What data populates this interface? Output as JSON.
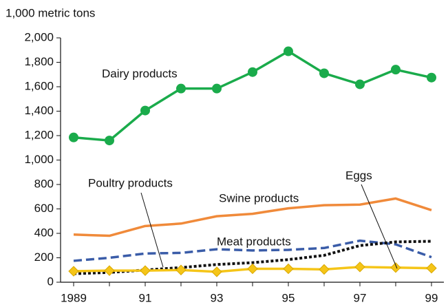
{
  "chart_data": {
    "type": "line",
    "y_label": "1,000 metric tons",
    "categories": [
      "1989",
      null,
      "91",
      null,
      "93",
      null,
      "95",
      null,
      "97",
      null,
      "99"
    ],
    "ylim": [
      0,
      2000
    ],
    "yticks": [
      0,
      200,
      400,
      600,
      800,
      {
        "value": 1000,
        "label": "1,000"
      },
      {
        "value": 1200,
        "label": "1,200"
      },
      {
        "value": 1400,
        "label": "1,400"
      },
      {
        "value": 1600,
        "label": "1,600"
      },
      {
        "value": 1800,
        "label": "1,800"
      },
      {
        "value": 2000,
        "label": "2,000"
      }
    ],
    "series": [
      {
        "name": "Dairy products",
        "color": "#1aab4b",
        "linestyle": "solid",
        "marker": "circle",
        "values": [
          1185,
          1160,
          1405,
          1585,
          1585,
          1720,
          1890,
          1710,
          1620,
          1740,
          1675
        ]
      },
      {
        "name": "Swine products",
        "color": "#f08a3a",
        "linestyle": "solid",
        "marker": "none",
        "values": [
          390,
          380,
          460,
          480,
          540,
          560,
          605,
          630,
          635,
          685,
          590
        ]
      },
      {
        "name": "Meat products",
        "color": "#3a5ca8",
        "linestyle": "dashed",
        "marker": "none",
        "values": [
          175,
          200,
          235,
          240,
          270,
          260,
          265,
          280,
          340,
          310,
          205
        ]
      },
      {
        "name": "Poultry products",
        "color": "#111111",
        "linestyle": "dotted",
        "marker": "none",
        "values": [
          70,
          80,
          100,
          120,
          145,
          160,
          185,
          220,
          300,
          330,
          335
        ]
      },
      {
        "name": "Eggs",
        "color": "#f5c518",
        "linestyle": "solid",
        "marker": "diamond",
        "values": [
          90,
          95,
          95,
          100,
          85,
          110,
          110,
          105,
          125,
          120,
          115
        ]
      }
    ]
  }
}
